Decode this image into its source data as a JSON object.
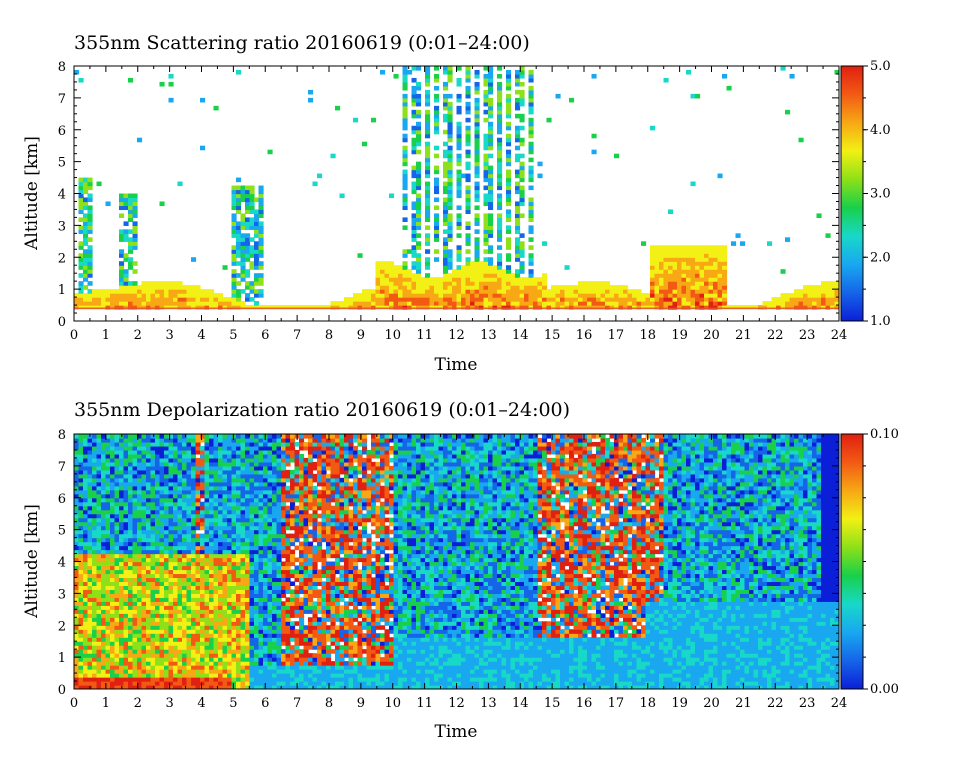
{
  "colors": {
    "scale": [
      "#0b1fd8",
      "#1565e8",
      "#19a8f0",
      "#18d8c8",
      "#18d04a",
      "#8ee018",
      "#f2f014",
      "#f7a814",
      "#f25a14",
      "#e02010"
    ],
    "axis": "#000000",
    "background": "#ffffff",
    "ground_line": "#e0502a"
  },
  "chart_data": [
    {
      "type": "heatmap",
      "title": "355nm Scattering ratio  20160619 (0:01–24:00)",
      "xlabel": "Time",
      "ylabel": "Altitude [km]",
      "xlim": [
        0,
        24
      ],
      "ylim": [
        0,
        8
      ],
      "x_ticks": [
        "0",
        "1",
        "2",
        "3",
        "4",
        "5",
        "6",
        "7",
        "8",
        "9",
        "10",
        "11",
        "12",
        "13",
        "14",
        "15",
        "16",
        "17",
        "18",
        "19",
        "20",
        "21",
        "22",
        "23",
        "24"
      ],
      "y_ticks": [
        "0",
        "1",
        "2",
        "3",
        "4",
        "5",
        "6",
        "7",
        "8"
      ],
      "colorbar": {
        "range": [
          1.0,
          5.0
        ],
        "labels": [
          "5.0",
          "4.0",
          "3.0",
          "2.0",
          "1.0"
        ],
        "label_values": [
          5.0,
          4.0,
          3.0,
          2.0,
          1.0
        ]
      },
      "grid": false
    },
    {
      "type": "heatmap",
      "title": "355nm Depolarization ratio  20160619 (0:01–24:00)",
      "xlabel": "Time",
      "ylabel": "Altitude [km]",
      "xlim": [
        0,
        24
      ],
      "ylim": [
        0,
        8
      ],
      "x_ticks": [
        "0",
        "1",
        "2",
        "3",
        "4",
        "5",
        "6",
        "7",
        "8",
        "9",
        "10",
        "11",
        "12",
        "13",
        "14",
        "15",
        "16",
        "17",
        "18",
        "19",
        "20",
        "21",
        "22",
        "23",
        "24"
      ],
      "y_ticks": [
        "0",
        "1",
        "2",
        "3",
        "4",
        "5",
        "6",
        "7",
        "8"
      ],
      "colorbar": {
        "range": [
          0.0,
          0.1
        ],
        "labels": [
          "0.10",
          "0.00"
        ],
        "label_values": [
          0.1,
          0.0
        ]
      },
      "grid": false
    }
  ]
}
